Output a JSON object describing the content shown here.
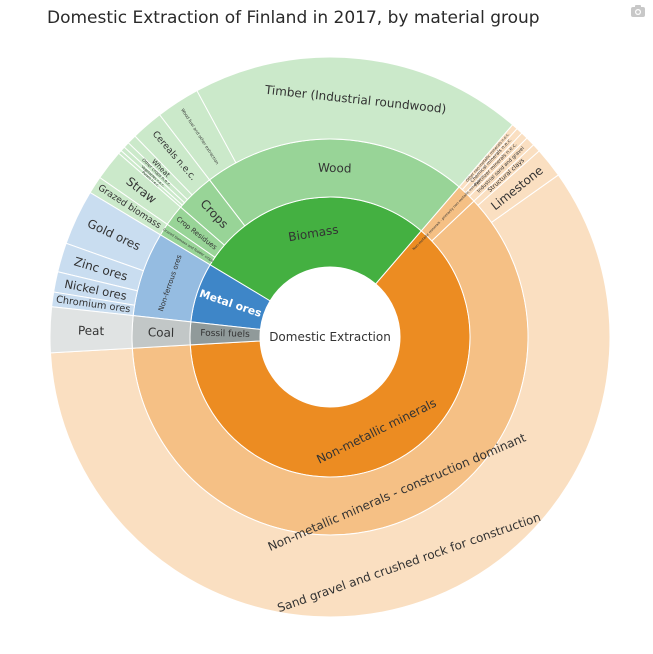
{
  "title": "Domestic Extraction of Finland in 2017, by material group",
  "toolbar": {
    "camera_icon": "camera-icon"
  },
  "chart_data": {
    "type": "sunburst",
    "title": "Domestic Extraction of Finland in 2017, by material group",
    "root": "Domestic Extraction",
    "colors": {
      "Non-metallic minerals": "#ec8c22",
      "Biomass": "#44b041",
      "Metal ores": "#3e86c8",
      "Fossil fuels": "#909a9a"
    },
    "tree": [
      {
        "label": "Non-metallic minerals",
        "children": [
          {
            "label": "Non-metallic minerals - construction dominant",
            "children": [
              {
                "label": "Sand gravel and crushed rock for construction",
                "value": 175
              },
              {
                "label": "Limestone",
                "value": 5.2
              },
              {
                "label": "Structural clays",
                "value": 1.4
              }
            ]
          },
          {
            "label": "Non-metallic minerals - primarily non-metallic minerals",
            "children": [
              {
                "label": "Industrial sand and gravel",
                "value": 1.6
              },
              {
                "label": "Fertilizer minerals n.e.c.",
                "value": 1.2
              },
              {
                "label": "Chemical minerals n.e.c.",
                "value": 1.1
              },
              {
                "label": "Other non-metallic minerals n.e.c.",
                "value": 1.0
              }
            ]
          }
        ]
      },
      {
        "label": "Biomass",
        "children": [
          {
            "label": "Wood",
            "children": [
              {
                "label": "Timber (Industrial roundwood)",
                "value": 57
              },
              {
                "label": "Wood fuel and other extraction",
                "value": 7.5
              }
            ]
          },
          {
            "label": "Crops",
            "children": [
              {
                "label": "Cereals n.e.c.",
                "value": 5.5
              },
              {
                "label": "Wheat",
                "value": 1.6
              },
              {
                "label": "Other crops n.e.c.",
                "value": 1.0
              },
              {
                "label": "Vegetables n.e.c.",
                "value": 0.8
              },
              {
                "label": "Pulses n.e.c.",
                "value": 0.6
              }
            ]
          },
          {
            "label": "Crop Residues",
            "children": [
              {
                "label": "Straw",
                "value": 5.2
              }
            ]
          },
          {
            "label": "Grazed biomass and fodder crops",
            "children": [
              {
                "label": "Grazed biomass",
                "value": 3.0
              }
            ]
          }
        ]
      },
      {
        "label": "Metal ores",
        "children": [
          {
            "label": "Non-ferrous ores",
            "children": [
              {
                "label": "Gold ores",
                "value": 9.5
              },
              {
                "label": "Zinc ores",
                "value": 5.0
              },
              {
                "label": "Nickel ores",
                "value": 3.5
              },
              {
                "label": "Chromium ores",
                "value": 2.5
              }
            ]
          }
        ]
      },
      {
        "label": "Fossil fuels",
        "children": [
          {
            "label": "Coal",
            "children": [
              {
                "label": "Peat",
                "value": 7.8
              }
            ]
          }
        ]
      }
    ]
  }
}
